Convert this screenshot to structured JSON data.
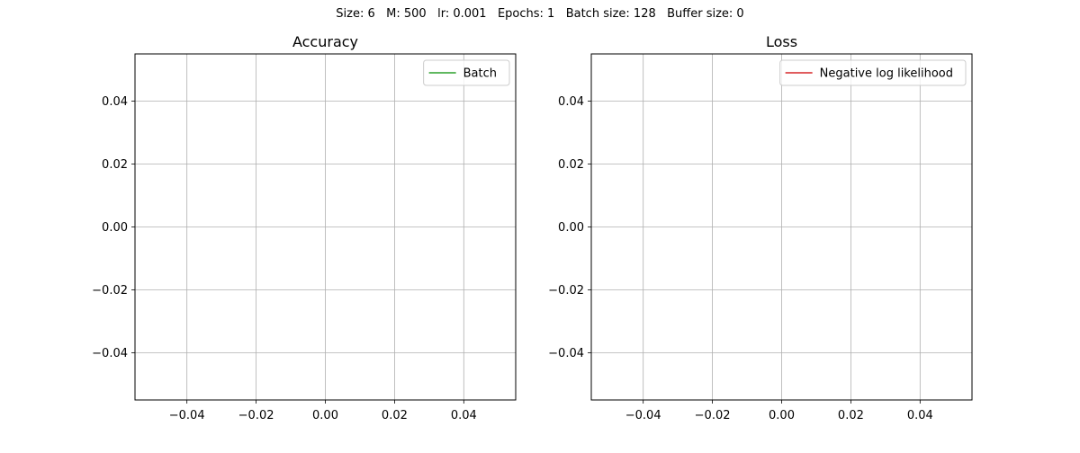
{
  "figure": {
    "suptitle": "Size: 6   M: 500   lr: 0.001   Epochs: 1   Batch size: 128   Buffer size: 0"
  },
  "chart_data": [
    {
      "type": "line",
      "title": "Accuracy",
      "xlabel": "",
      "ylabel": "",
      "xlim": [
        -0.055,
        0.055
      ],
      "ylim": [
        -0.055,
        0.055
      ],
      "xticks": [
        -0.04,
        -0.02,
        0.0,
        0.02,
        0.04
      ],
      "yticks": [
        -0.04,
        -0.02,
        0.0,
        0.02,
        0.04
      ],
      "xtick_labels": [
        "−0.04",
        "−0.02",
        "0.00",
        "0.02",
        "0.04"
      ],
      "ytick_labels": [
        "−0.04",
        "−0.02",
        "0.00",
        "0.02",
        "0.04"
      ],
      "grid": true,
      "legend_position": "top-right",
      "series": [
        {
          "name": "Batch",
          "color": "#2ca02c",
          "x": [],
          "y": []
        }
      ]
    },
    {
      "type": "line",
      "title": "Loss",
      "xlabel": "",
      "ylabel": "",
      "xlim": [
        -0.055,
        0.055
      ],
      "ylim": [
        -0.055,
        0.055
      ],
      "xticks": [
        -0.04,
        -0.02,
        0.0,
        0.02,
        0.04
      ],
      "yticks": [
        -0.04,
        -0.02,
        0.0,
        0.02,
        0.04
      ],
      "xtick_labels": [
        "−0.04",
        "−0.02",
        "0.00",
        "0.02",
        "0.04"
      ],
      "ytick_labels": [
        "−0.04",
        "−0.02",
        "0.00",
        "0.02",
        "0.04"
      ],
      "grid": true,
      "legend_position": "top-right",
      "series": [
        {
          "name": "Negative log likelihood",
          "color": "#d62728",
          "x": [],
          "y": []
        }
      ]
    }
  ]
}
